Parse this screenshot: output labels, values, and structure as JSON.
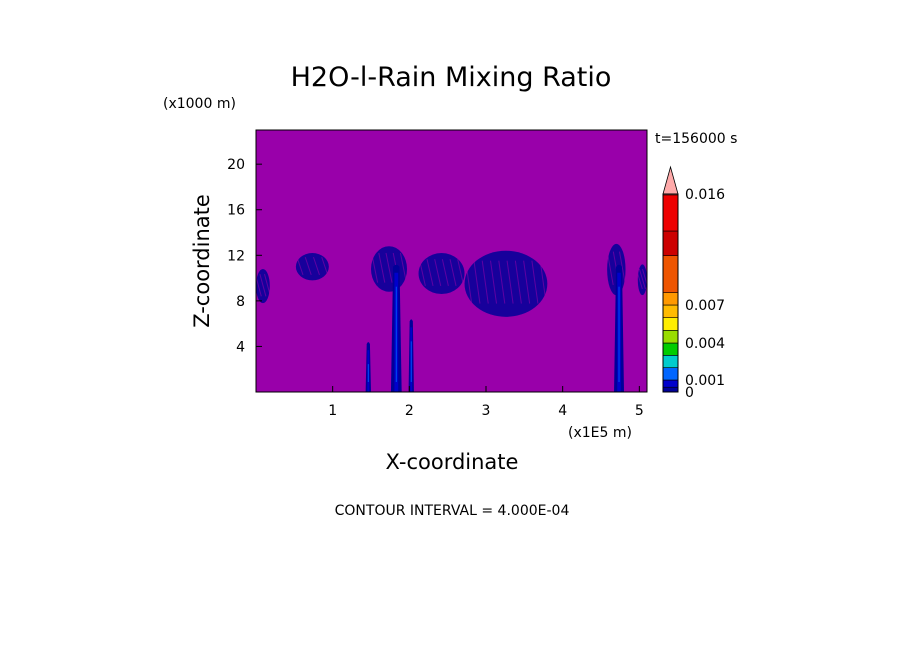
{
  "chart_data": {
    "type": "heatmap",
    "title": "H2O-l-Rain Mixing Ratio",
    "xlabel": "X-coordinate",
    "ylabel": "Z-coordinate",
    "x_unit": "(x1E5 m)",
    "y_unit": "(x1000 m)",
    "time_label": "t=156000 s",
    "footer": "CONTOUR INTERVAL = 4.000E-04",
    "xlim": [
      0,
      5.1
    ],
    "ylim": [
      0,
      23
    ],
    "x_ticks": [
      {
        "value": 1,
        "label": "1"
      },
      {
        "value": 2,
        "label": "2"
      },
      {
        "value": 3,
        "label": "3"
      },
      {
        "value": 4,
        "label": "4"
      },
      {
        "value": 5,
        "label": "5"
      }
    ],
    "y_ticks": [
      {
        "value": 4,
        "label": "4"
      },
      {
        "value": 8,
        "label": "8"
      },
      {
        "value": 12,
        "label": "12"
      },
      {
        "value": 16,
        "label": "16"
      },
      {
        "value": 20,
        "label": "20"
      }
    ],
    "background_color": "#9900aa",
    "colorbar": {
      "levels": [
        {
          "lo": 0,
          "hi": 0.0004,
          "color": "#000099"
        },
        {
          "lo": 0.0004,
          "hi": 0.001,
          "color": "#0000cc"
        },
        {
          "lo": 0.001,
          "hi": 0.002,
          "color": "#0066ff"
        },
        {
          "lo": 0.002,
          "hi": 0.003,
          "color": "#00cccc"
        },
        {
          "lo": 0.003,
          "hi": 0.004,
          "color": "#00cc00"
        },
        {
          "lo": 0.004,
          "hi": 0.005,
          "color": "#99dd00"
        },
        {
          "lo": 0.005,
          "hi": 0.006,
          "color": "#ffee00"
        },
        {
          "lo": 0.006,
          "hi": 0.007,
          "color": "#ffbb00"
        },
        {
          "lo": 0.007,
          "hi": 0.008,
          "color": "#ff9900"
        },
        {
          "lo": 0.008,
          "hi": 0.011,
          "color": "#ee5500"
        },
        {
          "lo": 0.011,
          "hi": 0.013,
          "color": "#cc0000"
        },
        {
          "lo": 0.013,
          "hi": 0.016,
          "color": "#ee0000"
        },
        {
          "lo": 0.016,
          "hi": 0.02,
          "color": "#ff7777"
        }
      ],
      "extend_color": "#ffaaaa",
      "tick_labels": [
        {
          "value": 0,
          "label": "0"
        },
        {
          "value": 0.001,
          "label": "0.001"
        },
        {
          "value": 0.004,
          "label": "0.004"
        },
        {
          "value": 0.007,
          "label": "0.007"
        },
        {
          "value": 0.016,
          "label": "0.016"
        }
      ]
    },
    "features": [
      {
        "kind": "band",
        "x0": 0.0,
        "x1": 0.18,
        "z0": 7.8,
        "z1": 10.8
      },
      {
        "kind": "band",
        "x0": 0.52,
        "x1": 0.95,
        "z0": 9.8,
        "z1": 12.2
      },
      {
        "kind": "band",
        "x0": 1.5,
        "x1": 1.97,
        "z0": 8.8,
        "z1": 12.8
      },
      {
        "kind": "band",
        "x0": 2.12,
        "x1": 2.72,
        "z0": 8.6,
        "z1": 12.2
      },
      {
        "kind": "band",
        "x0": 2.72,
        "x1": 3.8,
        "z0": 6.6,
        "z1": 12.4
      },
      {
        "kind": "band",
        "x0": 4.58,
        "x1": 4.82,
        "z0": 8.5,
        "z1": 13.0
      },
      {
        "kind": "band",
        "x0": 4.98,
        "x1": 5.1,
        "z0": 8.5,
        "z1": 11.2
      },
      {
        "kind": "column",
        "x0": 1.43,
        "x1": 1.5,
        "z0": 0,
        "z1": 4.2
      },
      {
        "kind": "column",
        "x0": 1.76,
        "x1": 1.9,
        "z0": 0,
        "z1": 11.0
      },
      {
        "kind": "column",
        "x0": 1.99,
        "x1": 2.06,
        "z0": 0,
        "z1": 6.2
      },
      {
        "kind": "column",
        "x0": 4.67,
        "x1": 4.8,
        "z0": 0,
        "z1": 11.0
      }
    ]
  }
}
